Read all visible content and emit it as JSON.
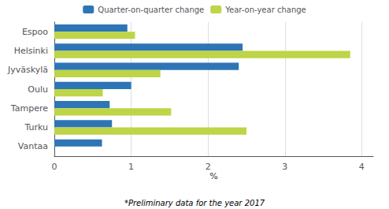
{
  "chart_data": {
    "type": "bar",
    "orientation": "horizontal",
    "categories": [
      "Espoo",
      "Helsinki",
      "Jyväskylä",
      "Oulu",
      "Tampere",
      "Turku",
      "Vantaa"
    ],
    "series": [
      {
        "name": "Quarter-on-quarter change",
        "color": "#2e75b6",
        "values": [
          0.95,
          2.45,
          2.4,
          1.0,
          0.72,
          0.75,
          0.62
        ]
      },
      {
        "name": "Year-on-year change",
        "color": "#bdd546",
        "values": [
          1.05,
          3.85,
          1.38,
          0.63,
          1.52,
          2.5,
          0.0
        ]
      }
    ],
    "xlabel": "%",
    "xlim": [
      0,
      4.15
    ],
    "xticks": [
      0,
      1,
      2,
      3,
      4
    ],
    "grid": true,
    "legend": "top",
    "annotations": [
      "*Preliminary data for the year 2017"
    ]
  }
}
